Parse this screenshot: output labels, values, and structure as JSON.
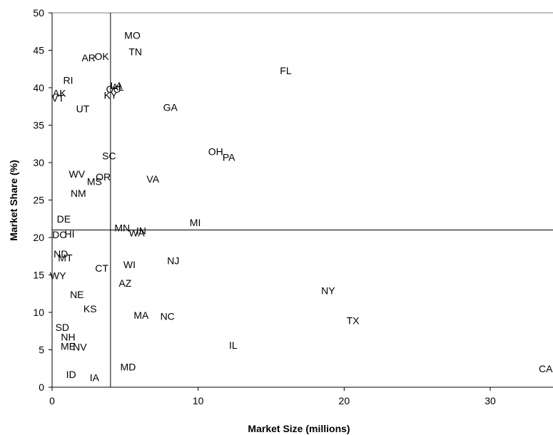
{
  "chart_data": {
    "type": "scatter",
    "xlabel": "Market Size (millions)",
    "ylabel": "Market Share (%)",
    "xlim": [
      0,
      34.3
    ],
    "ylim": [
      0,
      50
    ],
    "xticks": [
      "0",
      "10",
      "20",
      "30"
    ],
    "yticks": [
      "0",
      "5",
      "10",
      "15",
      "20",
      "25",
      "30",
      "35",
      "40",
      "45",
      "50"
    ],
    "reference_lines": {
      "x": 4.0,
      "y": 21.0
    },
    "grid": false,
    "legend": "none",
    "points": [
      {
        "label": "MO",
        "x": 5.5,
        "y": 47.0
      },
      {
        "label": "AR",
        "x": 2.5,
        "y": 44.0
      },
      {
        "label": "OK",
        "x": 3.4,
        "y": 44.2
      },
      {
        "label": "TN",
        "x": 5.7,
        "y": 44.8
      },
      {
        "label": "FL",
        "x": 16.0,
        "y": 42.3
      },
      {
        "label": "RI",
        "x": 1.1,
        "y": 41.0
      },
      {
        "label": "LA",
        "x": 4.4,
        "y": 40.3
      },
      {
        "label": "AL",
        "x": 4.5,
        "y": 40.1
      },
      {
        "label": "CO",
        "x": 4.2,
        "y": 39.8
      },
      {
        "label": "AK",
        "x": 0.5,
        "y": 39.3
      },
      {
        "label": "KY",
        "x": 4.0,
        "y": 39.0
      },
      {
        "label": "VT",
        "x": 0.4,
        "y": 38.6
      },
      {
        "label": "GA",
        "x": 8.1,
        "y": 37.4
      },
      {
        "label": "UT",
        "x": 2.1,
        "y": 37.2
      },
      {
        "label": "OH",
        "x": 11.2,
        "y": 31.5
      },
      {
        "label": "PA",
        "x": 12.1,
        "y": 30.7
      },
      {
        "label": "SC",
        "x": 3.9,
        "y": 30.9
      },
      {
        "label": "WV",
        "x": 1.7,
        "y": 28.5
      },
      {
        "label": "OR",
        "x": 3.5,
        "y": 28.1
      },
      {
        "label": "VA",
        "x": 6.9,
        "y": 27.8
      },
      {
        "label": "MS",
        "x": 2.9,
        "y": 27.5
      },
      {
        "label": "NM",
        "x": 1.8,
        "y": 25.9
      },
      {
        "label": "DE",
        "x": 0.8,
        "y": 22.5
      },
      {
        "label": "MI",
        "x": 9.8,
        "y": 22.0
      },
      {
        "label": "MN",
        "x": 4.8,
        "y": 21.3
      },
      {
        "label": "IN",
        "x": 6.1,
        "y": 20.9
      },
      {
        "label": "WA",
        "x": 5.8,
        "y": 20.6
      },
      {
        "label": "DC",
        "x": 0.5,
        "y": 20.4
      },
      {
        "label": "HI",
        "x": 1.2,
        "y": 20.5
      },
      {
        "label": "ND",
        "x": 0.6,
        "y": 17.8
      },
      {
        "label": "MT",
        "x": 0.9,
        "y": 17.3
      },
      {
        "label": "NJ",
        "x": 8.3,
        "y": 16.9
      },
      {
        "label": "WI",
        "x": 5.3,
        "y": 16.4
      },
      {
        "label": "CT",
        "x": 3.4,
        "y": 15.9
      },
      {
        "label": "WY",
        "x": 0.4,
        "y": 14.9
      },
      {
        "label": "AZ",
        "x": 5.0,
        "y": 13.9
      },
      {
        "label": "NY",
        "x": 18.9,
        "y": 12.9
      },
      {
        "label": "NE",
        "x": 1.7,
        "y": 12.4
      },
      {
        "label": "KS",
        "x": 2.6,
        "y": 10.5
      },
      {
        "label": "MA",
        "x": 6.1,
        "y": 9.6
      },
      {
        "label": "NC",
        "x": 7.9,
        "y": 9.5
      },
      {
        "label": "TX",
        "x": 20.6,
        "y": 8.9
      },
      {
        "label": "SD",
        "x": 0.7,
        "y": 8.0
      },
      {
        "label": "NH",
        "x": 1.1,
        "y": 6.7
      },
      {
        "label": "IL",
        "x": 12.4,
        "y": 5.6
      },
      {
        "label": "ME",
        "x": 1.1,
        "y": 5.5
      },
      {
        "label": "NV",
        "x": 1.9,
        "y": 5.4
      },
      {
        "label": "MD",
        "x": 5.2,
        "y": 2.7
      },
      {
        "label": "CA",
        "x": 33.8,
        "y": 2.5
      },
      {
        "label": "ID",
        "x": 1.3,
        "y": 1.7
      },
      {
        "label": "IA",
        "x": 2.9,
        "y": 1.3
      }
    ]
  }
}
